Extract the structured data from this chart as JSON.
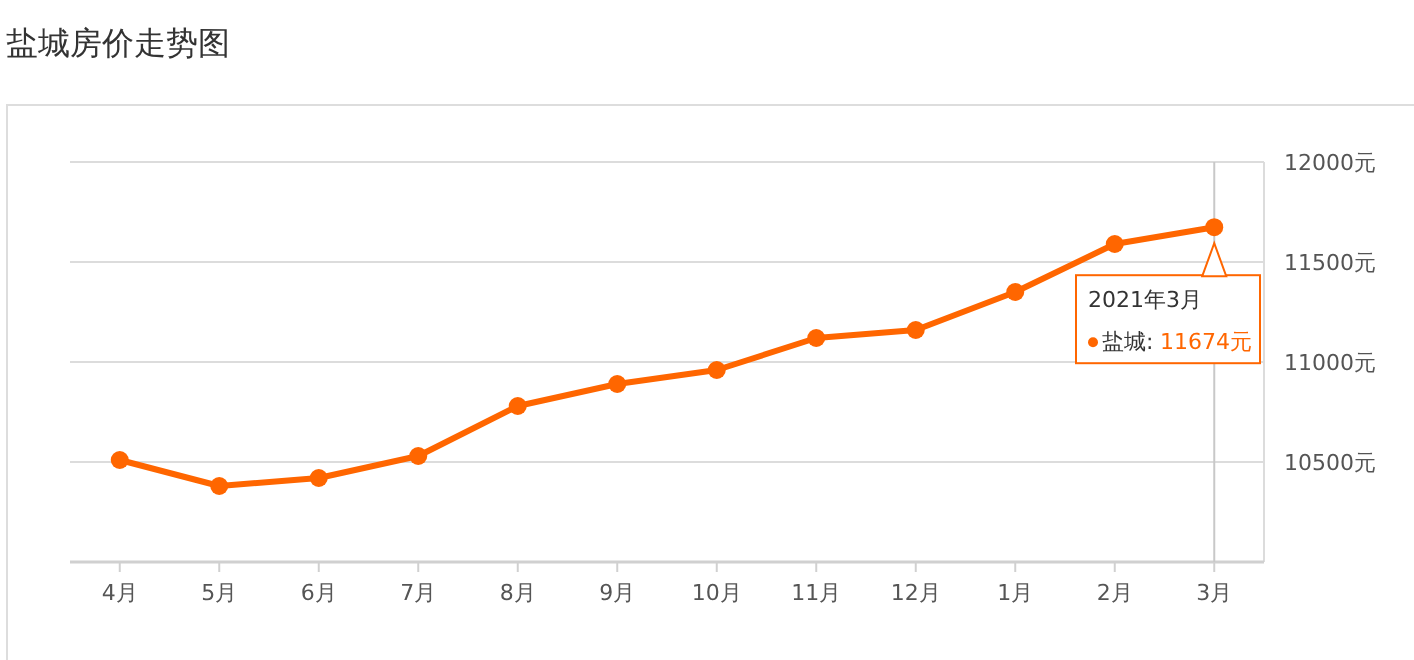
{
  "chart_data": {
    "type": "line",
    "title": "盐城房价走势图",
    "categories": [
      "4月",
      "5月",
      "6月",
      "7月",
      "8月",
      "9月",
      "10月",
      "11月",
      "12月",
      "1月",
      "2月",
      "3月"
    ],
    "series": [
      {
        "name": "盐城:",
        "color": "#ff6600",
        "values": [
          10510,
          10380,
          10420,
          10530,
          10780,
          10890,
          10960,
          11120,
          11160,
          11350,
          11590,
          11674
        ]
      }
    ],
    "ylim": [
      10000,
      12000
    ],
    "yticks": [
      {
        "value": 10500,
        "label": "10500元"
      },
      {
        "value": 11000,
        "label": "11000元"
      },
      {
        "value": 11500,
        "label": "11500元"
      },
      {
        "value": 12000,
        "label": "12000元"
      }
    ],
    "grid": "y",
    "marker": "circle",
    "line_style": "solid",
    "ref_lines": [
      {
        "axis": "x",
        "value": "3月",
        "color": "#c8c8c8"
      }
    ],
    "annotations": [
      {
        "text": "2021年3月",
        "x": "3月",
        "y": 11674
      },
      "11674元"
    ]
  }
}
